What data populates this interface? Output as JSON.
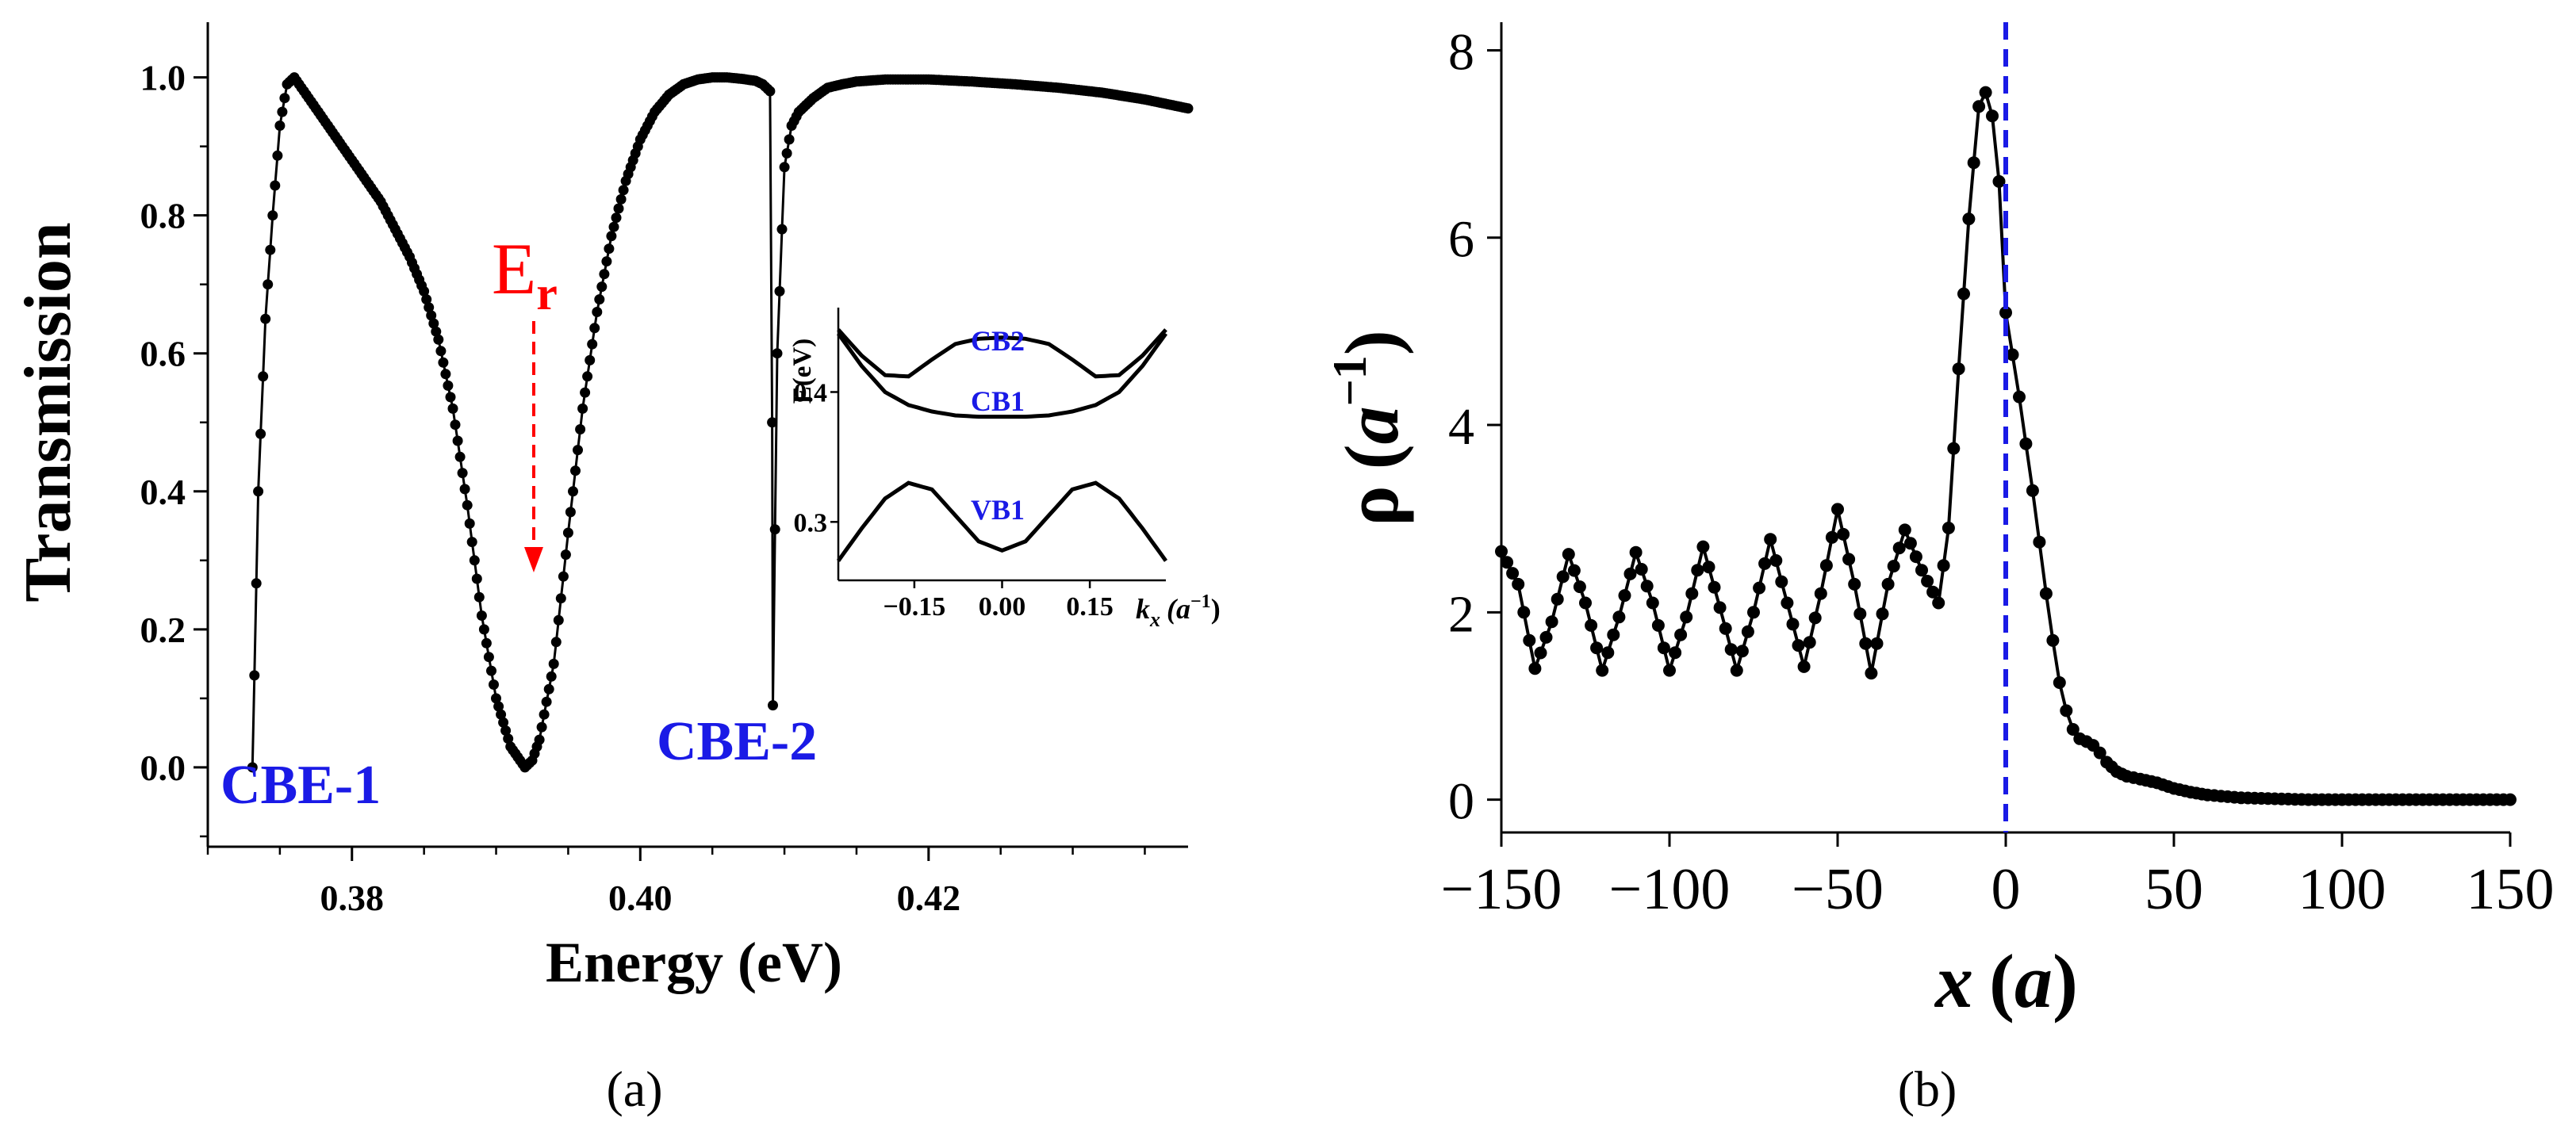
{
  "chart_data": [
    {
      "panel": "(a)",
      "type": "line",
      "xlabel": "Energy (eV)",
      "ylabel": "Transmission",
      "xlim": [
        0.37,
        0.438
      ],
      "ylim": [
        -0.115,
        1.08
      ],
      "xticks": [
        0.38,
        0.4,
        0.42
      ],
      "xtick_labels": [
        "0.38",
        "0.40",
        "0.42"
      ],
      "yticks": [
        0.0,
        0.2,
        0.4,
        0.6,
        0.8,
        1.0
      ],
      "ytick_labels": [
        "0.0",
        "0.2",
        "0.4",
        "0.6",
        "0.8",
        "1.0"
      ],
      "series": [
        {
          "color": "#000000",
          "marker": "circle",
          "x": [
            0.3731,
            0.3735,
            0.374,
            0.3745,
            0.375,
            0.3755,
            0.376,
            0.377,
            0.378,
            0.379,
            0.38,
            0.381,
            0.382,
            0.383,
            0.384,
            0.385,
            0.386,
            0.387,
            0.388,
            0.389,
            0.39,
            0.391,
            0.392,
            0.3925,
            0.393,
            0.394,
            0.395,
            0.396,
            0.397,
            0.398,
            0.399,
            0.4,
            0.401,
            0.402,
            0.403,
            0.404,
            0.405,
            0.406,
            0.407,
            0.408,
            0.4085,
            0.409,
            0.40915,
            0.4092,
            0.4095,
            0.41,
            0.4105,
            0.411,
            0.412,
            0.413,
            0.414,
            0.415,
            0.417,
            0.42,
            0.423,
            0.426,
            0.429,
            0.432,
            0.435,
            0.438
          ],
          "y": [
            0.0,
            0.4,
            0.65,
            0.8,
            0.93,
            0.99,
            1.0,
            0.97,
            0.94,
            0.91,
            0.88,
            0.85,
            0.82,
            0.78,
            0.74,
            0.69,
            0.62,
            0.52,
            0.38,
            0.22,
            0.1,
            0.03,
            0.0,
            0.01,
            0.04,
            0.15,
            0.34,
            0.52,
            0.66,
            0.77,
            0.85,
            0.91,
            0.95,
            0.975,
            0.99,
            0.997,
            1.0,
            1.0,
            0.998,
            0.995,
            0.99,
            0.98,
            0.5,
            0.09,
            0.6,
            0.87,
            0.93,
            0.95,
            0.97,
            0.985,
            0.99,
            0.994,
            0.997,
            0.997,
            0.994,
            0.99,
            0.985,
            0.978,
            0.968,
            0.955
          ]
        }
      ],
      "annotations": {
        "resonance_label": "E",
        "resonance_subscript": "r",
        "resonance_energy": 0.3925,
        "cbe1_label": "CBE-1",
        "cbe2_label": "CBE-2",
        "arrow_color": "#ff0000",
        "label_color_blue": "#1a1ae6"
      },
      "inset": {
        "ylabel": "E(eV)",
        "xlabel_k": "k",
        "xlabel_sub": "x",
        "xlabel_unit": "(a",
        "xlabel_exp": "−1",
        "xlabel_close": ")",
        "xlim": [
          -0.28,
          0.28
        ],
        "ylim": [
          0.255,
          0.465
        ],
        "xticks": [
          -0.15,
          0.0,
          0.15
        ],
        "xtick_labels": [
          "−0.15",
          "0.00",
          "0.15"
        ],
        "yticks": [
          0.3,
          0.4
        ],
        "ytick_labels": [
          "0.3",
          "0.4"
        ],
        "band_labels": [
          "CB2",
          "CB1",
          "VB1"
        ],
        "band_label_color": "#1a1ae6",
        "bands": [
          {
            "name": "CB2",
            "k": [
              -0.28,
              -0.24,
              -0.2,
              -0.16,
              -0.12,
              -0.08,
              -0.04,
              0.0,
              0.04,
              0.08,
              0.12,
              0.16,
              0.2,
              0.24,
              0.28
            ],
            "E": [
              0.448,
              0.428,
              0.413,
              0.412,
              0.425,
              0.437,
              0.441,
              0.442,
              0.441,
              0.437,
              0.425,
              0.412,
              0.413,
              0.428,
              0.448
            ]
          },
          {
            "name": "CB1",
            "k": [
              -0.28,
              -0.24,
              -0.2,
              -0.16,
              -0.12,
              -0.08,
              -0.04,
              0.0,
              0.04,
              0.08,
              0.12,
              0.16,
              0.2,
              0.24,
              0.28
            ],
            "E": [
              0.445,
              0.42,
              0.4,
              0.39,
              0.385,
              0.382,
              0.381,
              0.381,
              0.381,
              0.382,
              0.385,
              0.39,
              0.4,
              0.42,
              0.445
            ]
          },
          {
            "name": "VB1",
            "k": [
              -0.28,
              -0.24,
              -0.2,
              -0.16,
              -0.12,
              -0.08,
              -0.04,
              0.0,
              0.04,
              0.08,
              0.12,
              0.16,
              0.2,
              0.24,
              0.28
            ],
            "E": [
              0.27,
              0.295,
              0.318,
              0.33,
              0.325,
              0.305,
              0.285,
              0.278,
              0.285,
              0.305,
              0.325,
              0.33,
              0.318,
              0.295,
              0.27
            ]
          }
        ]
      }
    },
    {
      "panel": "(b)",
      "type": "line",
      "xlabel_main": "x",
      "xlabel_open": "(",
      "xlabel_unit": "a",
      "xlabel_close": ")",
      "ylabel_main": "ρ",
      "ylabel_open": "(",
      "ylabel_unit": "a",
      "ylabel_exp": "−1",
      "ylabel_close": ")",
      "xlim": [
        -150,
        150
      ],
      "ylim": [
        -0.35,
        8.3
      ],
      "xticks": [
        -150,
        -100,
        -50,
        0,
        50,
        100,
        150
      ],
      "xtick_labels": [
        "−150",
        "−100",
        "−50",
        "0",
        "50",
        "100",
        "150"
      ],
      "yticks": [
        0,
        2,
        4,
        6,
        8
      ],
      "ytick_labels": [
        "0",
        "2",
        "4",
        "6",
        "8"
      ],
      "vline_x": 0,
      "vline_color": "#1a1ae6",
      "series": [
        {
          "color": "#000000",
          "marker": "circle",
          "x": [
            -150,
            -145,
            -140,
            -135,
            -130,
            -125,
            -120,
            -115,
            -110,
            -105,
            -100,
            -95,
            -90,
            -85,
            -80,
            -75,
            -70,
            -65,
            -60,
            -55,
            -50,
            -45,
            -40,
            -35,
            -30,
            -25,
            -20,
            -17,
            -14,
            -11,
            -8,
            -6,
            -4,
            -2,
            0,
            2,
            4,
            6,
            8,
            10,
            12,
            14,
            16,
            18,
            20,
            22,
            24,
            26,
            28,
            30,
            33,
            36,
            40,
            45,
            50,
            55,
            60,
            70,
            80,
            90,
            100,
            110,
            120,
            130,
            140,
            150
          ],
          "y": [
            2.65,
            2.3,
            1.4,
            1.9,
            2.62,
            2.1,
            1.38,
            1.95,
            2.64,
            2.1,
            1.38,
            1.95,
            2.7,
            2.05,
            1.38,
            2.0,
            2.78,
            2.1,
            1.42,
            2.2,
            3.1,
            2.3,
            1.35,
            2.3,
            2.88,
            2.45,
            2.1,
            2.9,
            4.6,
            6.2,
            7.4,
            7.55,
            7.3,
            6.6,
            5.2,
            4.75,
            4.3,
            3.8,
            3.3,
            2.75,
            2.2,
            1.7,
            1.25,
            0.95,
            0.75,
            0.65,
            0.62,
            0.58,
            0.5,
            0.4,
            0.3,
            0.25,
            0.22,
            0.18,
            0.12,
            0.08,
            0.05,
            0.02,
            0.01,
            0.0,
            0.0,
            0.0,
            0.0,
            0.0,
            0.0,
            0.0
          ]
        }
      ]
    }
  ],
  "captions": {
    "a": "(a)",
    "b": "(b)"
  }
}
